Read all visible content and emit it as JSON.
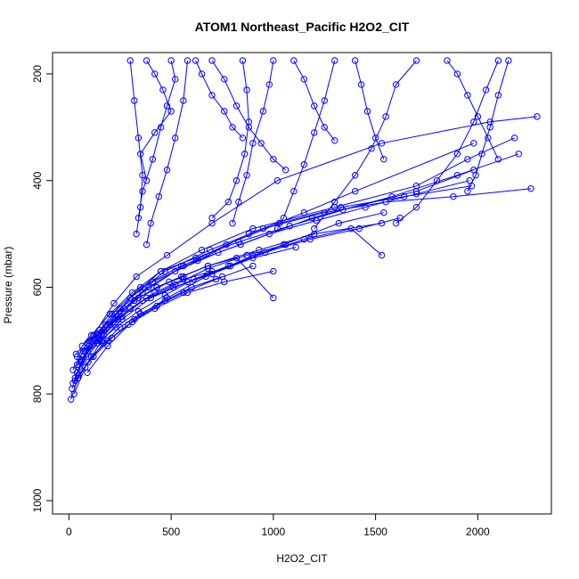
{
  "chart_data": {
    "type": "line",
    "title": "ATOM1 Northeast_Pacific H2O2_CIT",
    "xlabel": "H2O2_CIT",
    "ylabel": "Pressure (mbar)",
    "xlim": [
      -80,
      2360
    ],
    "ylim": [
      1025,
      160
    ],
    "y_reversed": true,
    "grid": false,
    "legend": "none",
    "xticks": [
      0,
      500,
      1000,
      1500,
      2000
    ],
    "yticks": [
      200,
      400,
      600,
      800,
      1000
    ],
    "marker": "open-circle",
    "color": "#0000ff",
    "series": [
      {
        "x": [
          40,
          120,
          220,
          330,
          480,
          700,
          1020,
          1530,
          2060,
          2290
        ],
        "y": [
          760,
          690,
          630,
          580,
          540,
          480,
          400,
          330,
          290,
          280
        ]
      },
      {
        "x": [
          60,
          170,
          300,
          450,
          650,
          900,
          1300,
          1700,
          1950,
          2180
        ],
        "y": [
          740,
          680,
          620,
          570,
          530,
          490,
          450,
          410,
          360,
          320
        ]
      },
      {
        "x": [
          30,
          100,
          210,
          350,
          550,
          840,
          1190,
          1580,
          1900,
          2200
        ],
        "y": [
          770,
          710,
          650,
          600,
          560,
          520,
          470,
          430,
          390,
          350
        ]
      },
      {
        "x": [
          50,
          150,
          270,
          410,
          630,
          880,
          1150,
          1400,
          1980
        ],
        "y": [
          750,
          700,
          640,
          590,
          550,
          500,
          460,
          420,
          330
        ]
      },
      {
        "x": [
          20,
          90,
          180,
          300,
          470,
          690,
          950,
          1250,
          1550,
          1880,
          2260
        ],
        "y": [
          780,
          720,
          670,
          620,
          570,
          530,
          490,
          460,
          440,
          430,
          415
        ]
      },
      {
        "x": [
          70,
          160,
          250,
          390,
          560,
          770,
          1030,
          1330,
          1640,
          1970
        ],
        "y": [
          730,
          690,
          640,
          600,
          560,
          520,
          480,
          450,
          430,
          410
        ]
      },
      {
        "x": [
          40,
          130,
          240,
          360,
          520,
          730,
          980,
          1210,
          1450,
          1700,
          1960
        ],
        "y": [
          745,
          700,
          655,
          610,
          570,
          535,
          500,
          475,
          450,
          425,
          400
        ]
      },
      {
        "x": [
          25,
          80,
          160,
          260,
          400,
          580,
          790,
          1050,
          1320,
          1540
        ],
        "y": [
          800,
          750,
          700,
          660,
          620,
          590,
          560,
          520,
          480,
          460
        ]
      },
      {
        "x": [
          90,
          190,
          320,
          480,
          670,
          900,
          1180,
          1420,
          1620
        ],
        "y": [
          760,
          710,
          660,
          620,
          580,
          540,
          510,
          490,
          470
        ]
      },
      {
        "x": [
          15,
          60,
          130,
          220,
          340,
          490,
          680,
          930,
          1200,
          1530
        ],
        "y": [
          790,
          740,
          700,
          660,
          620,
          590,
          560,
          530,
          500,
          480
        ]
      },
      {
        "x": [
          35,
          110,
          200,
          310,
          450,
          620,
          830,
          1080,
          1340,
          1700,
          1980
        ],
        "y": [
          725,
          690,
          650,
          610,
          570,
          545,
          515,
          485,
          455,
          420,
          380
        ]
      },
      {
        "x": [
          10,
          45,
          110,
          190,
          290,
          420,
          580,
          760,
          1000
        ],
        "y": [
          810,
          770,
          730,
          700,
          670,
          640,
          610,
          590,
          570
        ]
      },
      {
        "x": [
          55,
          140,
          230,
          340,
          470,
          610,
          780,
          960,
          1150,
          1380,
          1530
        ],
        "y": [
          735,
          705,
          675,
          645,
          615,
          585,
          560,
          535,
          510,
          490,
          540
        ]
      },
      {
        "x": [
          20,
          70,
          140,
          240,
          360,
          510,
          700,
          900,
          1110
        ],
        "y": [
          755,
          720,
          690,
          660,
          625,
          600,
          575,
          545,
          525
        ]
      },
      {
        "x": [
          80,
          170,
          260,
          380,
          520,
          680,
          870,
          1060
        ],
        "y": [
          720,
          690,
          655,
          620,
          595,
          565,
          540,
          520
        ]
      },
      {
        "x": [
          45,
          120,
          210,
          310,
          430,
          560,
          720,
          900
        ],
        "y": [
          765,
          730,
          695,
          665,
          635,
          610,
          585,
          560
        ]
      },
      {
        "x": [
          30,
          95,
          170,
          250,
          350,
          470,
          600,
          750
        ],
        "y": [
          775,
          740,
          705,
          675,
          650,
          625,
          600,
          580
        ]
      },
      {
        "x": [
          65,
          150,
          230,
          320,
          430,
          550,
          680,
          820,
          1000
        ],
        "y": [
          710,
          680,
          650,
          625,
          600,
          580,
          560,
          545,
          620
        ]
      },
      {
        "x": [
          100,
          200,
          300,
          420,
          560,
          700
        ],
        "y": [
          700,
          670,
          640,
          610,
          585,
          570
        ]
      },
      {
        "x": [
          40,
          90,
          150,
          230,
          320,
          430,
          560
        ],
        "y": [
          730,
          705,
          680,
          650,
          625,
          600,
          580
        ]
      },
      {
        "x": [
          380,
          420,
          460,
          500,
          420,
          350,
          380
        ],
        "y": [
          175,
          200,
          230,
          270,
          310,
          350,
          400
        ]
      },
      {
        "x": [
          500,
          520,
          480,
          450,
          410,
          360,
          340
        ],
        "y": [
          175,
          210,
          260,
          300,
          360,
          420,
          470
        ]
      },
      {
        "x": [
          300,
          320,
          340,
          360,
          350,
          330
        ],
        "y": [
          175,
          250,
          320,
          390,
          450,
          500
        ]
      },
      {
        "x": [
          580,
          560,
          520,
          480,
          440,
          400,
          380
        ],
        "y": [
          175,
          250,
          320,
          380,
          430,
          480,
          520
        ]
      },
      {
        "x": [
          850,
          870,
          880,
          860,
          820,
          780,
          700
        ],
        "y": [
          175,
          230,
          290,
          350,
          400,
          440,
          470
        ]
      },
      {
        "x": [
          1000,
          980,
          950,
          900,
          870,
          830,
          800
        ],
        "y": [
          175,
          220,
          270,
          330,
          390,
          440,
          480
        ]
      },
      {
        "x": [
          1300,
          1250,
          1200,
          1150,
          1100,
          1050,
          1020
        ],
        "y": [
          175,
          250,
          310,
          370,
          420,
          470,
          490
        ]
      },
      {
        "x": [
          1700,
          1600,
          1550,
          1480,
          1400,
          1300,
          1200
        ],
        "y": [
          175,
          220,
          280,
          340,
          390,
          440,
          490
        ]
      },
      {
        "x": [
          2100,
          2040,
          1980,
          1900,
          1800,
          1700,
          1600
        ],
        "y": [
          175,
          230,
          290,
          350,
          400,
          450,
          480
        ]
      },
      {
        "x": [
          1850,
          1900,
          1950,
          2000,
          2050,
          2100
        ],
        "y": [
          175,
          200,
          240,
          280,
          320,
          360
        ]
      },
      {
        "x": [
          2150,
          2100,
          2060,
          2020,
          1990,
          1950
        ],
        "y": [
          175,
          240,
          300,
          350,
          390,
          420
        ]
      },
      {
        "x": [
          700,
          760,
          820,
          880,
          940,
          1000,
          1060
        ],
        "y": [
          175,
          210,
          260,
          300,
          330,
          360,
          380
        ]
      },
      {
        "x": [
          1100,
          1150,
          1200,
          1250,
          1300
        ],
        "y": [
          175,
          210,
          260,
          300,
          325
        ]
      },
      {
        "x": [
          1400,
          1430,
          1460,
          1500,
          1540
        ],
        "y": [
          175,
          220,
          270,
          320,
          360
        ]
      },
      {
        "x": [
          620,
          650,
          700,
          760,
          800,
          850
        ],
        "y": [
          175,
          200,
          240,
          270,
          300,
          320
        ]
      }
    ]
  }
}
